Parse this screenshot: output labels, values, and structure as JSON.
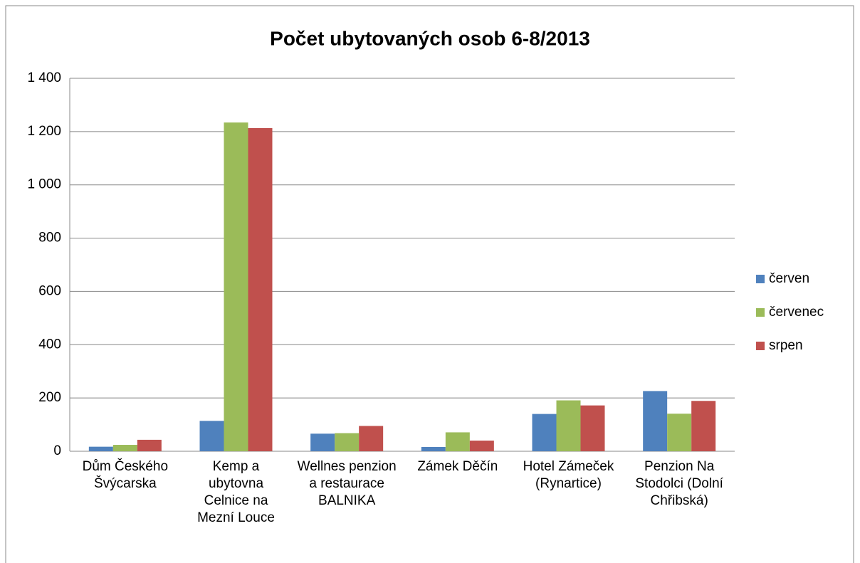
{
  "chart_data": {
    "type": "bar",
    "title": "Počet ubytovaných osob 6-8/2013",
    "categories": [
      "Dům Českého Švýcarska",
      "Kemp a ubytovna Celnice na Mezní Louce",
      "Wellnes penzion a restaurace BALNIKA",
      "Zámek Děčín",
      "Hotel Zámeček (Rynartice)",
      "Penzion Na Stodolci (Dolní Chřibská)"
    ],
    "series": [
      {
        "name": "červen",
        "color": "#4f81bd",
        "values": [
          17,
          114,
          66,
          16,
          140,
          226
        ]
      },
      {
        "name": "červenec",
        "color": "#9bbb59",
        "values": [
          24,
          1234,
          68,
          71,
          191,
          141
        ]
      },
      {
        "name": "srpen",
        "color": "#c0504d",
        "values": [
          43,
          1213,
          95,
          40,
          172,
          189
        ]
      }
    ],
    "ylim": [
      0,
      1400
    ],
    "yticks": [
      0,
      200,
      400,
      600,
      800,
      {
        "value": 1000,
        "label": "1 000"
      },
      {
        "value": 1200,
        "label": "1 200"
      },
      {
        "value": 1400,
        "label": "1 400"
      }
    ],
    "grid": true,
    "legend": "right"
  }
}
